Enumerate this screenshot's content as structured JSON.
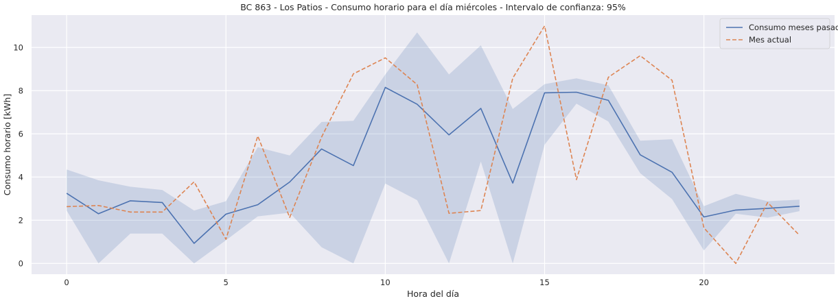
{
  "chart_data": {
    "type": "line",
    "title": "BC 863 - Los Patios - Consumo horario para el día miércoles - Intervalo de confianza: 95%",
    "xlabel": "Hora del día",
    "ylabel": "Consumo horario [kWh]",
    "xlim": [
      -1.1,
      24.1
    ],
    "ylim": [
      -0.5,
      11.5
    ],
    "xticks": [
      0,
      5,
      10,
      15,
      20
    ],
    "yticks": [
      0,
      2,
      4,
      6,
      8,
      10
    ],
    "grid": true,
    "legend_position": "top-right",
    "x": [
      0,
      1,
      2,
      3,
      4,
      5,
      6,
      7,
      8,
      9,
      10,
      11,
      12,
      13,
      14,
      15,
      16,
      17,
      18,
      19,
      20,
      21,
      22,
      23
    ],
    "series": [
      {
        "name": "Consumo meses pasados",
        "color": "#4c72b0",
        "style": "solid",
        "values": [
          3.25,
          2.3,
          2.9,
          2.82,
          0.93,
          2.28,
          2.72,
          3.77,
          5.3,
          4.53,
          8.15,
          7.37,
          5.95,
          7.18,
          3.72,
          7.9,
          7.93,
          7.55,
          5.03,
          4.22,
          2.15,
          2.47,
          2.55,
          2.65
        ],
        "ci_lower": [
          2.45,
          0.0,
          1.38,
          1.38,
          0.0,
          1.07,
          2.18,
          2.35,
          0.75,
          0.0,
          3.7,
          2.93,
          0.0,
          4.72,
          0.0,
          5.5,
          7.4,
          6.57,
          4.18,
          2.98,
          0.6,
          2.3,
          2.12,
          2.42
        ],
        "ci_upper": [
          4.35,
          3.85,
          3.55,
          3.4,
          2.45,
          2.88,
          5.38,
          5.0,
          6.55,
          6.6,
          8.75,
          10.7,
          8.75,
          10.1,
          7.15,
          8.3,
          8.57,
          8.25,
          5.68,
          5.75,
          2.65,
          3.22,
          2.88,
          2.95
        ]
      },
      {
        "name": "Mes actual",
        "color": "#dd8452",
        "style": "dashed",
        "values": [
          2.63,
          2.68,
          2.38,
          2.38,
          3.78,
          1.12,
          5.9,
          2.13,
          5.85,
          8.78,
          9.52,
          8.28,
          2.32,
          2.45,
          8.58,
          11.0,
          3.88,
          8.62,
          9.62,
          8.48,
          1.65,
          0.0,
          2.82,
          1.3
        ]
      }
    ]
  }
}
